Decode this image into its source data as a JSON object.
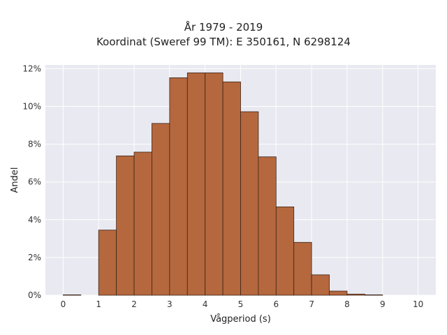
{
  "chart_data": {
    "type": "bar",
    "title_line1": "År 1979 - 2019",
    "title_line2": "Koordinat (Sweref 99 TM): E 350161, N 6298124",
    "xlabel": "Vågperiod (s)",
    "ylabel": "Andel",
    "xlim": [
      -0.5,
      10.5
    ],
    "ylim": [
      0,
      12.2
    ],
    "x_ticks": [
      0,
      1,
      2,
      3,
      4,
      5,
      6,
      7,
      8,
      9,
      10
    ],
    "y_ticks": [
      0,
      2,
      4,
      6,
      8,
      10,
      12
    ],
    "y_tick_labels": [
      "0%",
      "2%",
      "4%",
      "6%",
      "8%",
      "10%",
      "12%"
    ],
    "bin_width": 0.5,
    "bins": [
      {
        "start": 0.0,
        "value": 0.02
      },
      {
        "start": 0.5,
        "value": 0.0
      },
      {
        "start": 1.0,
        "value": 3.45
      },
      {
        "start": 1.5,
        "value": 7.38
      },
      {
        "start": 2.0,
        "value": 7.58
      },
      {
        "start": 2.5,
        "value": 9.1
      },
      {
        "start": 3.0,
        "value": 11.52
      },
      {
        "start": 3.5,
        "value": 11.78
      },
      {
        "start": 4.0,
        "value": 11.78
      },
      {
        "start": 4.5,
        "value": 11.3
      },
      {
        "start": 5.0,
        "value": 9.72
      },
      {
        "start": 5.5,
        "value": 7.33
      },
      {
        "start": 6.0,
        "value": 4.68
      },
      {
        "start": 6.5,
        "value": 2.8
      },
      {
        "start": 7.0,
        "value": 1.08
      },
      {
        "start": 7.5,
        "value": 0.22
      },
      {
        "start": 8.0,
        "value": 0.06
      },
      {
        "start": 8.5,
        "value": 0.02
      },
      {
        "start": 9.0,
        "value": 0.0
      },
      {
        "start": 9.5,
        "value": 0.0
      }
    ],
    "grid": true,
    "colors": {
      "bar_fill": "#b5683e",
      "bar_edge": "#3a2418",
      "plot_background": "#e9e9f1",
      "grid": "#ffffff"
    }
  }
}
